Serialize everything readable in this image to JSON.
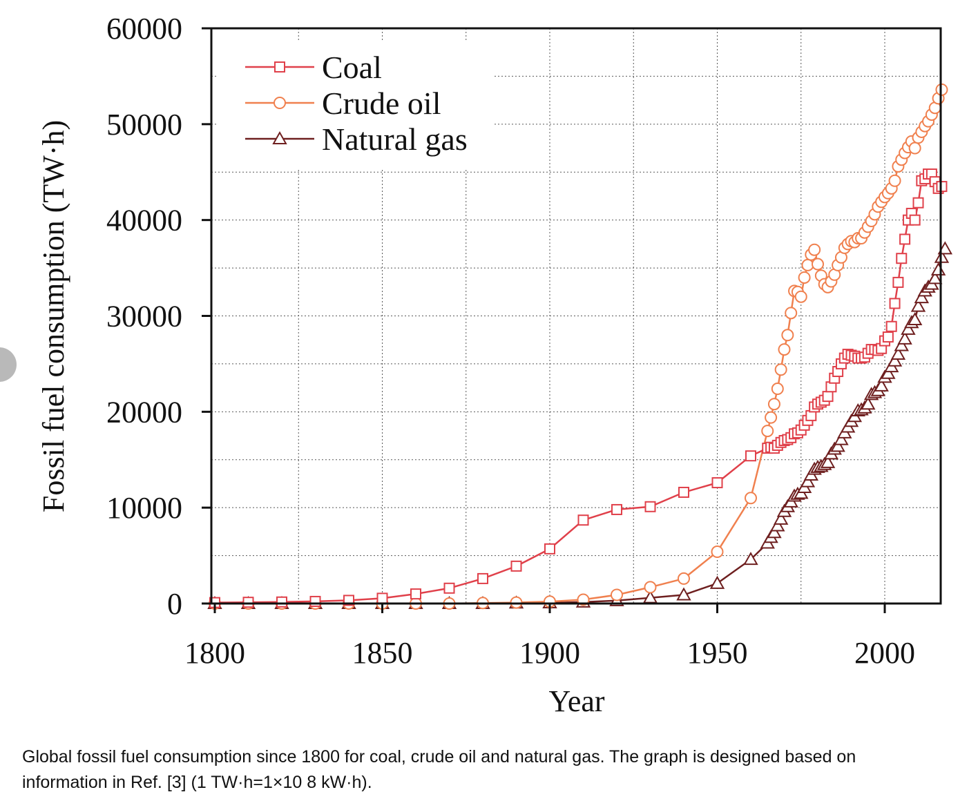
{
  "chart_data": {
    "type": "line",
    "xlabel": "Year",
    "ylabel": "Fossil fuel consumption (TW·h)",
    "xlim": [
      1800,
      2018
    ],
    "ylim": [
      0,
      60000
    ],
    "xticks": [
      1800,
      1850,
      1900,
      1950,
      2000
    ],
    "yticks": [
      0,
      10000,
      20000,
      30000,
      40000,
      50000,
      60000
    ],
    "grid": true,
    "legend_position": "top-left",
    "series": [
      {
        "name": "Coal",
        "color": "#e0404a",
        "marker": "square",
        "points": [
          [
            1800,
            100
          ],
          [
            1810,
            130
          ],
          [
            1820,
            160
          ],
          [
            1830,
            220
          ],
          [
            1840,
            330
          ],
          [
            1850,
            550
          ],
          [
            1860,
            1000
          ],
          [
            1870,
            1600
          ],
          [
            1880,
            2600
          ],
          [
            1890,
            3900
          ],
          [
            1900,
            5700
          ],
          [
            1910,
            8700
          ],
          [
            1920,
            9800
          ],
          [
            1930,
            10100
          ],
          [
            1940,
            11600
          ],
          [
            1950,
            12600
          ],
          [
            1960,
            15400
          ],
          [
            1965,
            16200
          ],
          [
            1966,
            16300
          ],
          [
            1967,
            16200
          ],
          [
            1968,
            16500
          ],
          [
            1969,
            16800
          ],
          [
            1970,
            17000
          ],
          [
            1971,
            17100
          ],
          [
            1972,
            17300
          ],
          [
            1973,
            17700
          ],
          [
            1974,
            17800
          ],
          [
            1975,
            18100
          ],
          [
            1976,
            18600
          ],
          [
            1977,
            19100
          ],
          [
            1978,
            19600
          ],
          [
            1979,
            20500
          ],
          [
            1980,
            20800
          ],
          [
            1981,
            21000
          ],
          [
            1982,
            21200
          ],
          [
            1983,
            21600
          ],
          [
            1984,
            22600
          ],
          [
            1985,
            23500
          ],
          [
            1986,
            24200
          ],
          [
            1987,
            25000
          ],
          [
            1988,
            25600
          ],
          [
            1989,
            26000
          ],
          [
            1990,
            25900
          ],
          [
            1991,
            25800
          ],
          [
            1992,
            25600
          ],
          [
            1993,
            25600
          ],
          [
            1994,
            25700
          ],
          [
            1995,
            26100
          ],
          [
            1996,
            26500
          ],
          [
            1997,
            26500
          ],
          [
            1998,
            26400
          ],
          [
            1999,
            26600
          ],
          [
            2000,
            27400
          ],
          [
            2001,
            27800
          ],
          [
            2002,
            28900
          ],
          [
            2003,
            31300
          ],
          [
            2004,
            33500
          ],
          [
            2005,
            36000
          ],
          [
            2006,
            38000
          ],
          [
            2007,
            40000
          ],
          [
            2008,
            40700
          ],
          [
            2009,
            40000
          ],
          [
            2010,
            41800
          ],
          [
            2011,
            44100
          ],
          [
            2012,
            44300
          ],
          [
            2013,
            44800
          ],
          [
            2014,
            44800
          ],
          [
            2015,
            44000
          ],
          [
            2016,
            43300
          ],
          [
            2017,
            43500
          ]
        ]
      },
      {
        "name": "Crude oil",
        "color": "#f0804e",
        "marker": "circle",
        "points": [
          [
            1800,
            0
          ],
          [
            1810,
            0
          ],
          [
            1820,
            0
          ],
          [
            1830,
            0
          ],
          [
            1840,
            0
          ],
          [
            1850,
            0
          ],
          [
            1860,
            0
          ],
          [
            1870,
            0
          ],
          [
            1880,
            50
          ],
          [
            1890,
            100
          ],
          [
            1900,
            200
          ],
          [
            1910,
            400
          ],
          [
            1920,
            900
          ],
          [
            1930,
            1700
          ],
          [
            1940,
            2600
          ],
          [
            1950,
            5400
          ],
          [
            1960,
            11000
          ],
          [
            1965,
            18000
          ],
          [
            1966,
            19400
          ],
          [
            1967,
            20800
          ],
          [
            1968,
            22400
          ],
          [
            1969,
            24400
          ],
          [
            1970,
            26500
          ],
          [
            1971,
            28000
          ],
          [
            1972,
            30300
          ],
          [
            1973,
            32600
          ],
          [
            1974,
            32500
          ],
          [
            1975,
            32000
          ],
          [
            1976,
            34000
          ],
          [
            1977,
            35300
          ],
          [
            1978,
            36400
          ],
          [
            1979,
            36900
          ],
          [
            1980,
            35400
          ],
          [
            1981,
            34200
          ],
          [
            1982,
            33300
          ],
          [
            1983,
            33000
          ],
          [
            1984,
            33600
          ],
          [
            1985,
            34300
          ],
          [
            1986,
            35300
          ],
          [
            1987,
            36100
          ],
          [
            1988,
            37100
          ],
          [
            1989,
            37500
          ],
          [
            1990,
            37800
          ],
          [
            1991,
            37700
          ],
          [
            1992,
            38100
          ],
          [
            1993,
            38100
          ],
          [
            1994,
            38700
          ],
          [
            1995,
            39300
          ],
          [
            1996,
            39900
          ],
          [
            1997,
            40600
          ],
          [
            1998,
            41400
          ],
          [
            1999,
            41900
          ],
          [
            2000,
            42400
          ],
          [
            2001,
            42800
          ],
          [
            2002,
            43300
          ],
          [
            2003,
            44100
          ],
          [
            2004,
            45600
          ],
          [
            2005,
            46300
          ],
          [
            2006,
            47000
          ],
          [
            2007,
            47600
          ],
          [
            2008,
            48200
          ],
          [
            2009,
            47500
          ],
          [
            2010,
            48600
          ],
          [
            2011,
            49200
          ],
          [
            2012,
            49800
          ],
          [
            2013,
            50300
          ],
          [
            2014,
            51000
          ],
          [
            2015,
            51700
          ],
          [
            2016,
            52700
          ],
          [
            2017,
            53600
          ]
        ]
      },
      {
        "name": "Natural gas",
        "color": "#6e1f1f",
        "marker": "triangle",
        "points": [
          [
            1800,
            0
          ],
          [
            1810,
            0
          ],
          [
            1820,
            0
          ],
          [
            1830,
            0
          ],
          [
            1840,
            0
          ],
          [
            1850,
            0
          ],
          [
            1860,
            0
          ],
          [
            1870,
            0
          ],
          [
            1880,
            0
          ],
          [
            1890,
            50
          ],
          [
            1900,
            70
          ],
          [
            1910,
            150
          ],
          [
            1920,
            300
          ],
          [
            1930,
            600
          ],
          [
            1940,
            900
          ],
          [
            1950,
            2100
          ],
          [
            1960,
            4600
          ],
          [
            1965,
            6300
          ],
          [
            1966,
            6900
          ],
          [
            1967,
            7400
          ],
          [
            1968,
            8100
          ],
          [
            1969,
            8800
          ],
          [
            1970,
            9600
          ],
          [
            1971,
            10100
          ],
          [
            1972,
            10600
          ],
          [
            1973,
            11200
          ],
          [
            1974,
            11400
          ],
          [
            1975,
            11500
          ],
          [
            1976,
            12100
          ],
          [
            1977,
            12700
          ],
          [
            1978,
            13400
          ],
          [
            1979,
            14000
          ],
          [
            1980,
            14200
          ],
          [
            1981,
            14300
          ],
          [
            1982,
            14500
          ],
          [
            1983,
            14700
          ],
          [
            1984,
            15600
          ],
          [
            1985,
            16100
          ],
          [
            1986,
            16400
          ],
          [
            1987,
            17100
          ],
          [
            1988,
            17800
          ],
          [
            1989,
            18400
          ],
          [
            1990,
            19000
          ],
          [
            1991,
            19500
          ],
          [
            1992,
            20100
          ],
          [
            1993,
            20200
          ],
          [
            1994,
            20400
          ],
          [
            1995,
            20800
          ],
          [
            1996,
            21800
          ],
          [
            1997,
            22000
          ],
          [
            1998,
            22200
          ],
          [
            1999,
            22700
          ],
          [
            2000,
            23600
          ],
          [
            2001,
            24000
          ],
          [
            2002,
            24700
          ],
          [
            2003,
            25300
          ],
          [
            2004,
            26000
          ],
          [
            2005,
            26900
          ],
          [
            2006,
            27600
          ],
          [
            2007,
            28600
          ],
          [
            2008,
            29300
          ],
          [
            2009,
            29600
          ],
          [
            2010,
            31000
          ],
          [
            2011,
            31900
          ],
          [
            2012,
            32600
          ],
          [
            2013,
            33000
          ],
          [
            2014,
            33300
          ],
          [
            2015,
            33900
          ],
          [
            2016,
            34800
          ],
          [
            2017,
            36100
          ],
          [
            2018,
            37000
          ]
        ]
      }
    ]
  },
  "caption": {
    "line1": "Global fossil fuel consumption since 1800 for coal, crude oil and natural gas. The graph is designed based on",
    "line2": "information in Ref. [3] (1 TW·h=1×10 8 kW·h)."
  }
}
